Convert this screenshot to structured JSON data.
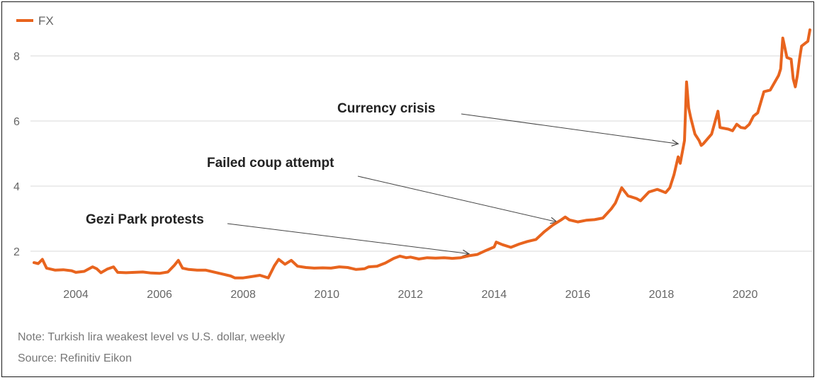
{
  "chart_data": {
    "type": "line",
    "title": "",
    "xlabel": "",
    "ylabel": "",
    "xlim": [
      2003.0,
      2021.6
    ],
    "ylim": [
      1.0,
      9.0
    ],
    "grid": true,
    "legend": "top-left",
    "x_ticks": [
      2004,
      2006,
      2008,
      2010,
      2012,
      2014,
      2016,
      2018,
      2020
    ],
    "x_tick_labels": [
      "2004",
      "2006",
      "2008",
      "2010",
      "2012",
      "2014",
      "2016",
      "2018",
      "2020"
    ],
    "y_ticks": [
      2,
      4,
      6,
      8
    ],
    "y_tick_labels": [
      "2",
      "4",
      "6",
      "8"
    ],
    "series": [
      {
        "name": "FX",
        "color": "#e8641e",
        "x": [
          2003.0,
          2003.1,
          2003.2,
          2003.3,
          2003.5,
          2003.7,
          2003.9,
          2004.0,
          2004.2,
          2004.4,
          2004.5,
          2004.6,
          2004.75,
          2004.9,
          2005.0,
          2005.2,
          2005.4,
          2005.6,
          2005.8,
          2006.0,
          2006.2,
          2006.35,
          2006.45,
          2006.55,
          2006.7,
          2006.9,
          2007.1,
          2007.3,
          2007.5,
          2007.7,
          2007.8,
          2007.9,
          2008.0,
          2008.2,
          2008.4,
          2008.6,
          2008.75,
          2008.85,
          2009.0,
          2009.15,
          2009.3,
          2009.5,
          2009.7,
          2009.9,
          2010.1,
          2010.3,
          2010.5,
          2010.7,
          2010.9,
          2011.0,
          2011.2,
          2011.4,
          2011.6,
          2011.75,
          2011.9,
          2012.0,
          2012.2,
          2012.4,
          2012.6,
          2012.8,
          2013.0,
          2013.2,
          2013.4,
          2013.6,
          2013.8,
          2014.0,
          2014.05,
          2014.2,
          2014.4,
          2014.6,
          2014.8,
          2015.0,
          2015.2,
          2015.4,
          2015.6,
          2015.7,
          2015.8,
          2016.0,
          2016.2,
          2016.4,
          2016.6,
          2016.8,
          2016.9,
          2017.0,
          2017.05,
          2017.2,
          2017.4,
          2017.5,
          2017.7,
          2017.9,
          2018.0,
          2018.1,
          2018.2,
          2018.3,
          2018.4,
          2018.45,
          2018.55,
          2018.6,
          2018.65,
          2018.7,
          2018.8,
          2018.9,
          2018.95,
          2019.0,
          2019.1,
          2019.2,
          2019.35,
          2019.4,
          2019.6,
          2019.7,
          2019.8,
          2019.9,
          2020.0,
          2020.1,
          2020.2,
          2020.3,
          2020.45,
          2020.6,
          2020.8,
          2020.85,
          2020.9,
          2021.0,
          2021.1,
          2021.15,
          2021.2,
          2021.25,
          2021.3,
          2021.35,
          2021.45,
          2021.5,
          2021.55
        ],
        "values": [
          1.65,
          1.62,
          1.75,
          1.48,
          1.42,
          1.43,
          1.4,
          1.35,
          1.38,
          1.52,
          1.46,
          1.34,
          1.45,
          1.52,
          1.35,
          1.34,
          1.35,
          1.36,
          1.33,
          1.32,
          1.36,
          1.56,
          1.72,
          1.48,
          1.44,
          1.42,
          1.42,
          1.36,
          1.3,
          1.24,
          1.18,
          1.18,
          1.18,
          1.22,
          1.26,
          1.18,
          1.56,
          1.75,
          1.6,
          1.72,
          1.54,
          1.5,
          1.48,
          1.49,
          1.48,
          1.52,
          1.5,
          1.44,
          1.46,
          1.52,
          1.54,
          1.64,
          1.78,
          1.85,
          1.8,
          1.82,
          1.76,
          1.8,
          1.79,
          1.8,
          1.78,
          1.8,
          1.86,
          1.9,
          2.02,
          2.13,
          2.28,
          2.2,
          2.12,
          2.22,
          2.3,
          2.36,
          2.6,
          2.8,
          2.96,
          3.05,
          2.96,
          2.9,
          2.95,
          2.97,
          3.02,
          3.3,
          3.48,
          3.8,
          3.95,
          3.7,
          3.62,
          3.55,
          3.82,
          3.9,
          3.85,
          3.8,
          3.95,
          4.35,
          4.9,
          4.7,
          5.4,
          7.2,
          6.4,
          6.1,
          5.6,
          5.4,
          5.25,
          5.3,
          5.45,
          5.6,
          6.3,
          5.8,
          5.75,
          5.7,
          5.9,
          5.8,
          5.78,
          5.9,
          6.15,
          6.25,
          6.9,
          6.95,
          7.4,
          7.6,
          8.55,
          7.95,
          7.9,
          7.3,
          7.05,
          7.4,
          7.9,
          8.3,
          8.4,
          8.45,
          8.8
        ]
      }
    ],
    "annotations": [
      {
        "text": "Currency crisis",
        "x": 2018.4,
        "y": 5.3
      },
      {
        "text": "Failed coup attempt",
        "x": 2015.5,
        "y": 2.9
      },
      {
        "text": "Gezi Park protests",
        "x": 2013.4,
        "y": 1.92
      }
    ]
  },
  "legend": {
    "label": "FX",
    "color": "#e8641e"
  },
  "notes": {
    "note": "Note: Turkish lira weakest level vs U.S. dollar, weekly",
    "source": "Source: Refinitiv Eikon"
  }
}
